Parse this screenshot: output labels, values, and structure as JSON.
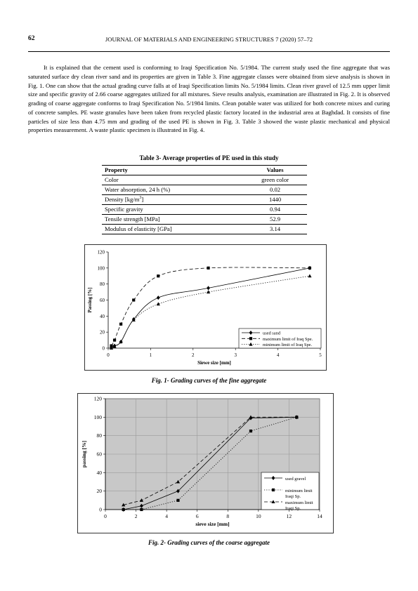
{
  "header": {
    "page_number": "62",
    "journal": "JOURNAL OF MATERIALS AND ENGINEERING STRUCTURES 7 (2020) 57–72"
  },
  "body_text": "It is explained that the cement used is conforming to Iraqi Specification No. 5/1984. The current study used the fine aggregate that was saturated surface dry clean river sand and its properties are given in Table 3. Fine aggregate classes were obtained from sieve analysis is shown in Fig. 1. One can show that the actual grading curve falls at of Iraqi Specification limits No. 5/1984 limits. Clean river gravel of 12.5 mm upper limit size and specific gravity of 2.66 coarse aggregates utilized for all mixtures. Sieve results analysis, examination are illustrated in Fig. 2. It is observed grading of coarse aggregate conforms to Iraqi Specification No. 5/1984 limits. Clean potable water was utilized for both concrete mixes and curing of concrete samples. PE waste granules have been taken from recycled plastic factory located in the industrial area at Baghdad. It consists of fine particles of size less than 4.75 mm and grading of the used PE is shown in Fig. 3. Table 3 showed the waste plastic mechanical and physical properties measurement. A waste plastic specimen is illustrated in Fig. 4.",
  "table3": {
    "caption": "Table 3- Average properties of PE used in this study",
    "headers": [
      "Property",
      "Values"
    ],
    "rows": [
      {
        "property": "Color",
        "value": "green color"
      },
      {
        "property": "Water absorption, 24 h (%)",
        "value": "0.02"
      },
      {
        "property_main": "Density [kg/m",
        "property_sup": "3",
        "property_end": "]",
        "value": "1440"
      },
      {
        "property": "Specific gravity",
        "value": "0.94"
      },
      {
        "property": "Tensile strength [MPa]",
        "value": "52.9"
      },
      {
        "property": "Modulus of elasticity [GPa]",
        "value": "3.14"
      }
    ]
  },
  "chart_data": [
    {
      "type": "line",
      "title": "",
      "caption": "Fig. 1- Grading curves of the fine aggregate",
      "xlabel": "Siewe size [mm]",
      "ylabel": "Passing [%]",
      "xlim": [
        0,
        5
      ],
      "ylim": [
        0,
        120
      ],
      "xticks": [
        "0",
        "1",
        "2",
        "3",
        "4",
        "5"
      ],
      "yticks": [
        "0",
        "20",
        "40",
        "60",
        "80",
        "100",
        "120"
      ],
      "grid": false,
      "legend_position": "bottom-right",
      "series": [
        {
          "name": "used sand",
          "style": "solid",
          "marker": "diamond",
          "x": [
            0.075,
            0.15,
            0.3,
            0.6,
            1.18,
            2.36,
            4.75
          ],
          "y": [
            1,
            3,
            8,
            36,
            63,
            75,
            100
          ]
        },
        {
          "name": "maximum limit of Iraq Spe.",
          "style": "dashed",
          "marker": "square",
          "x": [
            0.075,
            0.15,
            0.3,
            0.6,
            1.18,
            2.36,
            4.75
          ],
          "y": [
            3,
            10,
            30,
            60,
            90,
            100,
            100
          ]
        },
        {
          "name": "minimum limit of Iraq Spe.",
          "style": "dotted",
          "marker": "triangle",
          "x": [
            0.075,
            0.15,
            0.3,
            0.6,
            1.18,
            2.36,
            4.75
          ],
          "y": [
            0,
            2,
            8,
            35,
            55,
            70,
            90
          ]
        }
      ]
    },
    {
      "type": "line",
      "title": "",
      "caption": "Fig. 2- Grading curves of the coarse aggregate",
      "xlabel": "sieve size [mm]",
      "ylabel": "passing [%]",
      "xlim": [
        0,
        14
      ],
      "ylim": [
        0,
        120
      ],
      "xticks": [
        "0",
        "2",
        "4",
        "6",
        "8",
        "10",
        "12",
        "14"
      ],
      "yticks": [
        "0",
        "20",
        "40",
        "60",
        "80",
        "100",
        "120"
      ],
      "grid": true,
      "legend_position": "bottom-right",
      "series": [
        {
          "name": "used gravel",
          "style": "solid",
          "marker": "diamond",
          "x": [
            1.18,
            2.36,
            4.75,
            9.5,
            12.5
          ],
          "y": [
            0,
            4,
            20,
            99,
            100
          ]
        },
        {
          "name": "minimum limit Iraqi Sp.",
          "style": "dotted",
          "marker": "square",
          "x": [
            1.18,
            2.36,
            4.75,
            9.5,
            12.5
          ],
          "y": [
            0,
            0,
            10,
            85,
            100
          ]
        },
        {
          "name": "maximum limit Iraqi Sp.",
          "style": "dashed",
          "marker": "triangle",
          "x": [
            1.18,
            2.36,
            4.75,
            9.5,
            12.5
          ],
          "y": [
            5,
            10,
            30,
            100,
            100
          ]
        }
      ]
    }
  ]
}
